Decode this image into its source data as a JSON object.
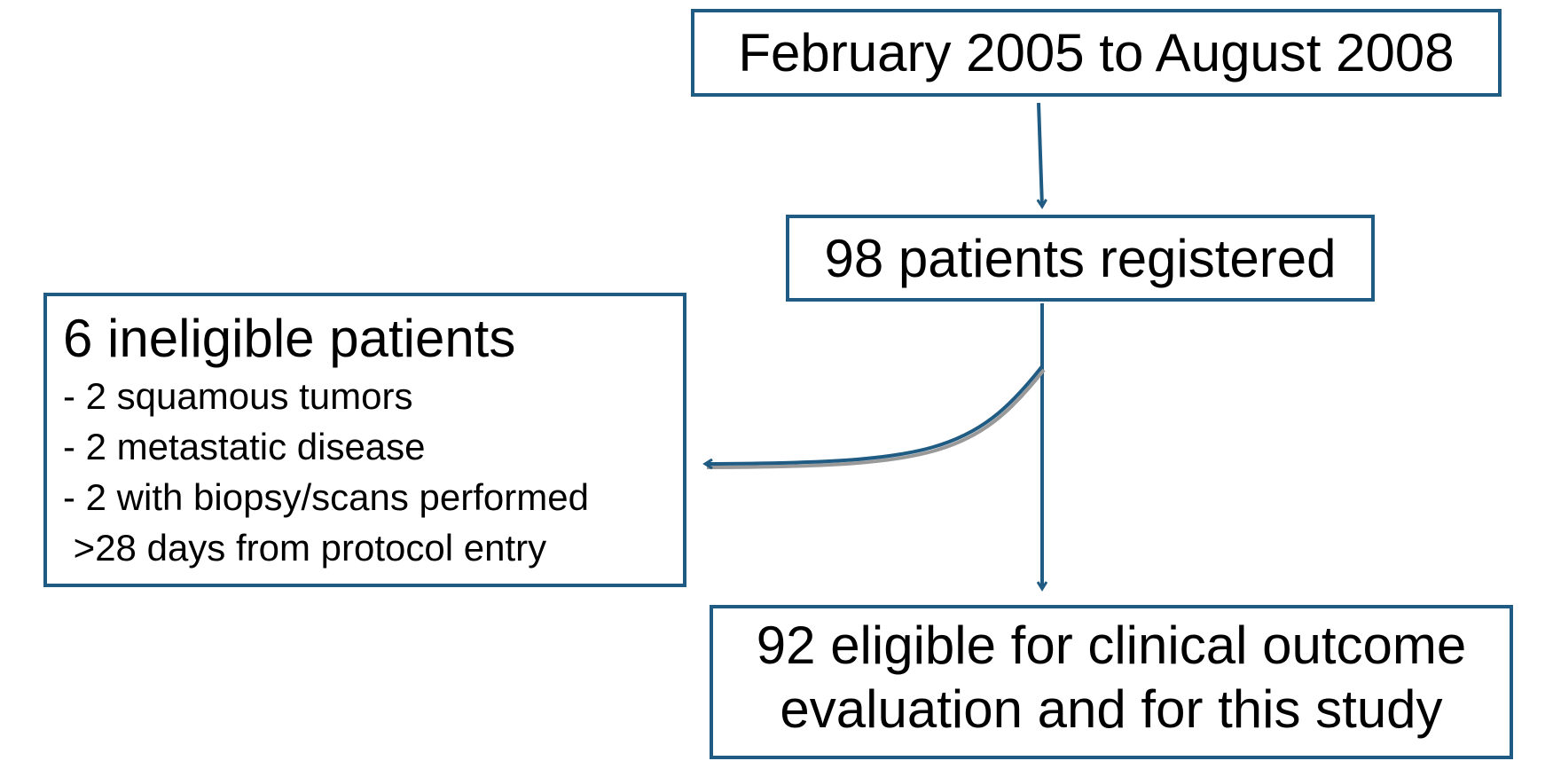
{
  "nodes": [
    {
      "label": "February 2005 to August 2008"
    },
    {
      "label": "98 patients registered"
    },
    {
      "label": "6 ineligible patients",
      "items": [
        "- 2 squamous tumors",
        "- 2 metastatic disease",
        "- 2 with biopsy/scans performed",
        " >28 days from protocol entry"
      ]
    },
    {
      "lines": [
        "92 eligible for clinical outcome",
        "evaluation and for this study"
      ]
    }
  ]
}
